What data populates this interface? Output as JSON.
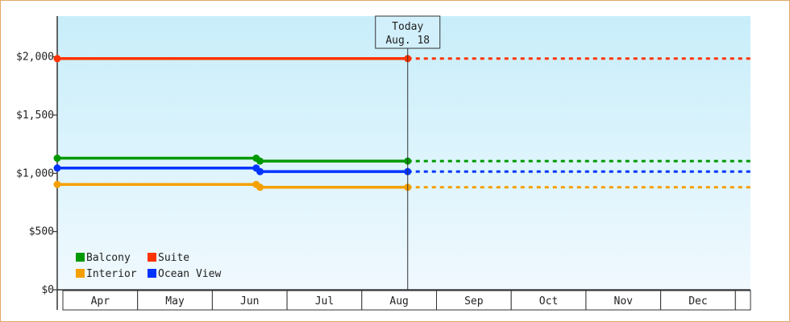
{
  "chart_data": {
    "type": "line",
    "title": "",
    "xlabel": "",
    "ylabel": "",
    "ylim": [
      0,
      2350
    ],
    "y_ticks": [
      {
        "value": 0,
        "label": "$0"
      },
      {
        "value": 500,
        "label": "$500"
      },
      {
        "value": 1000,
        "label": "$1,000"
      },
      {
        "value": 1500,
        "label": "$1,500"
      },
      {
        "value": 2000,
        "label": "$2,000"
      }
    ],
    "months": [
      "Apr",
      "May",
      "Jun",
      "Jul",
      "Aug",
      "Sep",
      "Oct",
      "Nov",
      "Dec"
    ],
    "x_range": [
      0,
      9.06
    ],
    "today": {
      "line1": "Today",
      "line2": "Aug. 18",
      "x": 4.58
    },
    "series": [
      {
        "name": "Balcony",
        "color": "#009900",
        "points": [
          [
            0,
            1130
          ],
          [
            2.6,
            1130
          ],
          [
            2.65,
            1105
          ],
          [
            4.58,
            1105
          ]
        ],
        "projection_end": 9.06
      },
      {
        "name": "Suite",
        "color": "#ff3300",
        "points": [
          [
            0,
            1985
          ],
          [
            4.58,
            1985
          ]
        ],
        "projection_end": 9.06
      },
      {
        "name": "Interior",
        "color": "#f5a000",
        "points": [
          [
            0,
            905
          ],
          [
            2.6,
            905
          ],
          [
            2.65,
            880
          ],
          [
            4.58,
            880
          ]
        ],
        "projection_end": 9.06
      },
      {
        "name": "Ocean View",
        "color": "#0033ff",
        "points": [
          [
            0,
            1045
          ],
          [
            2.6,
            1045
          ],
          [
            2.65,
            1015
          ],
          [
            4.58,
            1015
          ]
        ],
        "projection_end": 9.06
      }
    ],
    "legend_position": "bottom-left",
    "background_gradient": [
      "#c8eefa",
      "#f0f9fe"
    ],
    "grid": false
  }
}
